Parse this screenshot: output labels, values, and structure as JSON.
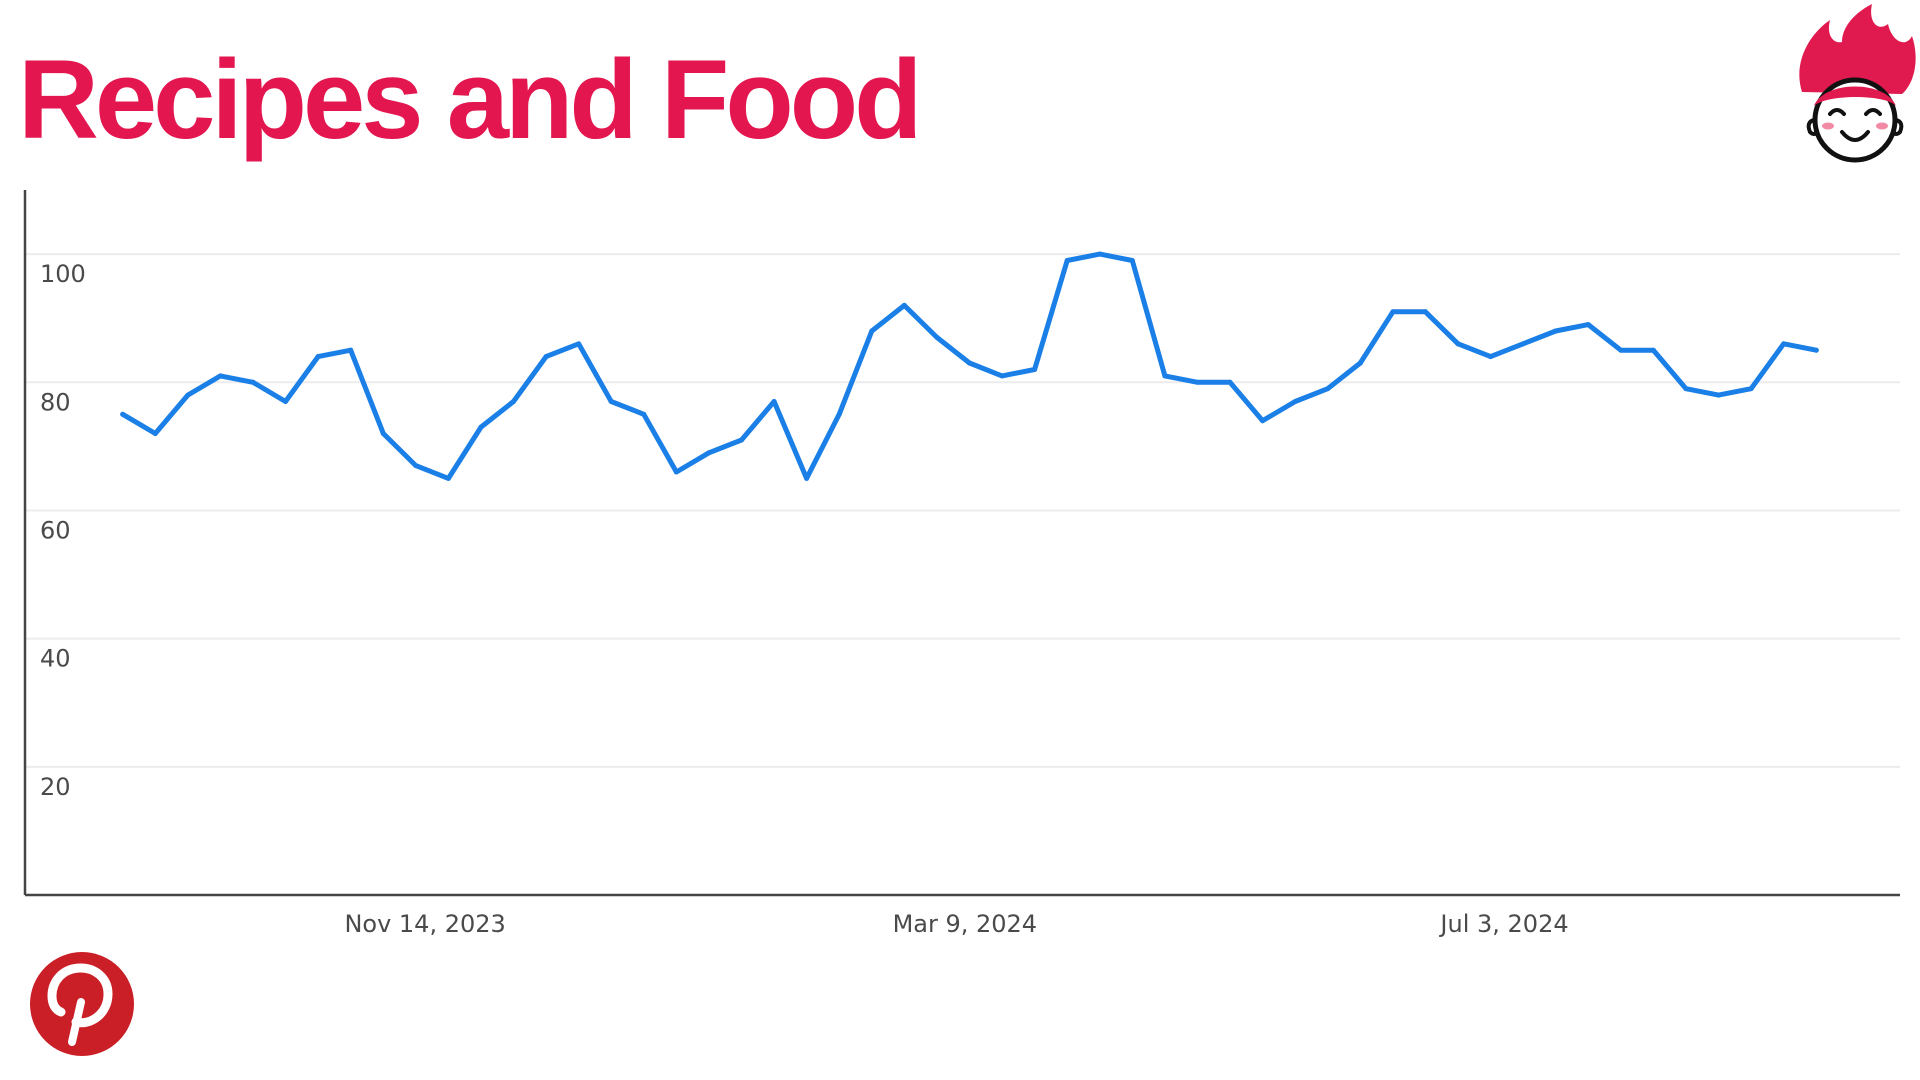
{
  "header": {
    "title": "Recipes and Food",
    "title_color": "#e3164f"
  },
  "logos": {
    "mascot": {
      "icon": "flame-hair-face-mascot-icon",
      "color": "#e0194f"
    },
    "pinterest": {
      "icon": "pinterest-logo-icon",
      "color": "#cb1f27"
    }
  },
  "chart_data": {
    "type": "line",
    "title": "",
    "xlabel": "",
    "ylabel": "",
    "line_color": "#1a7fe6",
    "grid": true,
    "ylim": [
      0,
      110
    ],
    "yticks": [
      20,
      40,
      60,
      80,
      100
    ],
    "xlim": [
      "2023-08-20",
      "2024-09-26"
    ],
    "xticks": [
      {
        "date": "2023-11-14",
        "label": "Nov 14, 2023"
      },
      {
        "date": "2024-03-09",
        "label": "Mar 9, 2024"
      },
      {
        "date": "2024-07-03",
        "label": "Jul 3, 2024"
      }
    ],
    "series": [
      {
        "points": [
          [
            "2023-09-10",
            75
          ],
          [
            "2023-09-17",
            72
          ],
          [
            "2023-09-24",
            78
          ],
          [
            "2023-10-01",
            81
          ],
          [
            "2023-10-08",
            80
          ],
          [
            "2023-10-15",
            77
          ],
          [
            "2023-10-22",
            84
          ],
          [
            "2023-10-29",
            85
          ],
          [
            "2023-11-05",
            72
          ],
          [
            "2023-11-12",
            67
          ],
          [
            "2023-11-19",
            65
          ],
          [
            "2023-11-26",
            73
          ],
          [
            "2023-12-03",
            77
          ],
          [
            "2023-12-10",
            84
          ],
          [
            "2023-12-17",
            86
          ],
          [
            "2023-12-24",
            77
          ],
          [
            "2023-12-31",
            75
          ],
          [
            "2024-01-07",
            66
          ],
          [
            "2024-01-14",
            69
          ],
          [
            "2024-01-21",
            71
          ],
          [
            "2024-01-28",
            77
          ],
          [
            "2024-02-04",
            65
          ],
          [
            "2024-02-11",
            75
          ],
          [
            "2024-02-18",
            88
          ],
          [
            "2024-02-25",
            92
          ],
          [
            "2024-03-03",
            87
          ],
          [
            "2024-03-10",
            83
          ],
          [
            "2024-03-17",
            81
          ],
          [
            "2024-03-24",
            82
          ],
          [
            "2024-03-31",
            99
          ],
          [
            "2024-04-07",
            100
          ],
          [
            "2024-04-14",
            99
          ],
          [
            "2024-04-21",
            81
          ],
          [
            "2024-04-28",
            80
          ],
          [
            "2024-05-05",
            80
          ],
          [
            "2024-05-12",
            74
          ],
          [
            "2024-05-19",
            77
          ],
          [
            "2024-05-26",
            79
          ],
          [
            "2024-06-02",
            83
          ],
          [
            "2024-06-09",
            91
          ],
          [
            "2024-06-16",
            91
          ],
          [
            "2024-06-23",
            86
          ],
          [
            "2024-06-30",
            84
          ],
          [
            "2024-07-07",
            86
          ],
          [
            "2024-07-14",
            88
          ],
          [
            "2024-07-21",
            89
          ],
          [
            "2024-07-28",
            85
          ],
          [
            "2024-08-04",
            85
          ],
          [
            "2024-08-11",
            79
          ],
          [
            "2024-08-18",
            78
          ],
          [
            "2024-08-25",
            79
          ],
          [
            "2024-09-01",
            86
          ],
          [
            "2024-09-08",
            85
          ]
        ]
      }
    ]
  }
}
